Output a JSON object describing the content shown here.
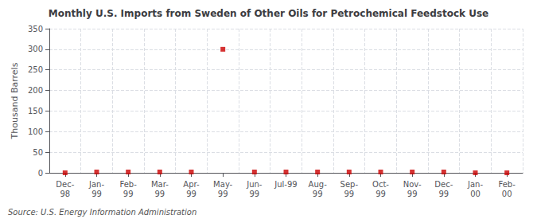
{
  "chart_data": {
    "type": "scatter",
    "title": "Monthly U.S. Imports from Sweden of Other Oils for Petrochemical Feedstock Use",
    "ylabel": "Thousand Barrels",
    "source": "Source: U.S. Energy Information Administration",
    "categories": [
      "Dec-\n98",
      "Jan-\n99",
      "Feb-\n99",
      "Mar-\n99",
      "Apr-\n99",
      "May-\n99",
      "Jun-\n99",
      "Jul-99",
      "Aug-\n99",
      "Sep-\n99",
      "Oct-\n99",
      "Nov-\n99",
      "Dec-\n99",
      "Jan-\n00",
      "Feb-\n00"
    ],
    "values": [
      0,
      2,
      2,
      2,
      2,
      300,
      2,
      2,
      2,
      2,
      2,
      2,
      2,
      0,
      0
    ],
    "color": "#cc0000",
    "marker": "square",
    "ylim": [
      0,
      350
    ],
    "yticks": [
      0,
      50,
      100,
      150,
      200,
      250,
      300,
      350
    ],
    "grid": true
  }
}
